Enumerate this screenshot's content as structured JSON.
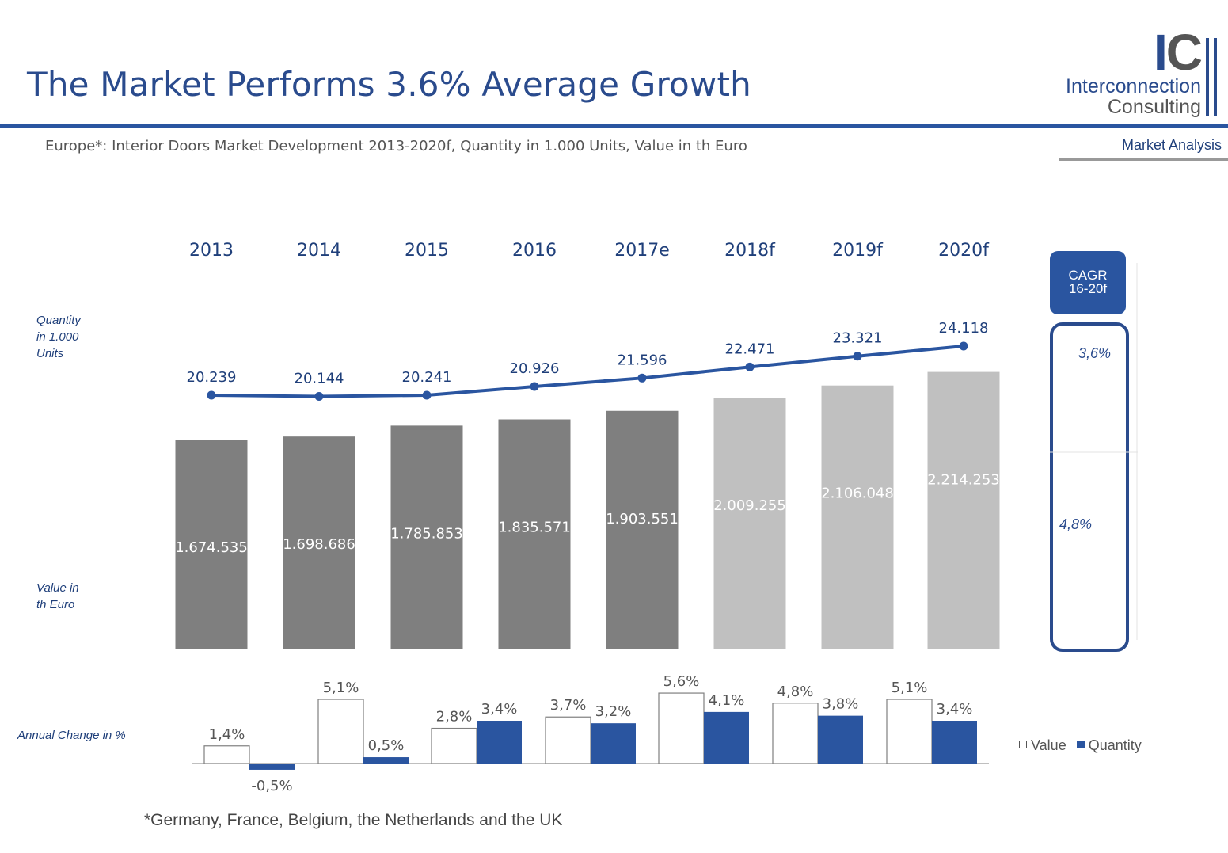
{
  "header": {
    "title": "The Market Performs 3.6% Average Growth",
    "subtitle": "Europe*: Interior Doors Market Development 2013-2020f,  Quantity in 1.000 Units, Value in th Euro",
    "section_label": "Market Analysis"
  },
  "logo": {
    "mark_i": "I",
    "mark_c": "C",
    "line1": "Interconnection",
    "line2": "Consulting"
  },
  "labels": {
    "quantity_axis": [
      "Quantity",
      "in 1.000",
      "Units"
    ],
    "value_axis": [
      "Value in",
      "th  Euro"
    ],
    "annual_change": "Annual Change in %"
  },
  "cagr": {
    "head_line1": "CAGR",
    "head_line2": "16-20f",
    "quantity": "3,6%",
    "value": "4,8%"
  },
  "legend": {
    "value": "Value",
    "quantity": "Quantity"
  },
  "footnote": "*Germany, France, Belgium, the Netherlands and the UK",
  "colors": {
    "brand_blue": "#2a55a0",
    "actual_bar": "#7f7f7f",
    "forecast_bar": "#c0c0c0"
  },
  "chart_data": [
    {
      "type": "bar",
      "categories": [
        "2013",
        "2014",
        "2015",
        "2016",
        "2017e",
        "2018f",
        "2019f",
        "2020f"
      ],
      "series": [
        {
          "values": [
            1674535,
            1698686,
            1785853,
            1835571,
            1903551,
            2009255,
            2106048,
            2214253
          ],
          "labels": [
            "1.674.535",
            "1.698.686",
            "1.785.853",
            "1.835.571",
            "1.903.551",
            "2.009.255",
            "2.106.048",
            "2.214.253"
          ]
        }
      ],
      "forecast_from_index": 5
    },
    {
      "type": "line",
      "categories": [
        "2013",
        "2014",
        "2015",
        "2016",
        "2017e",
        "2018f",
        "2019f",
        "2020f"
      ],
      "series": [
        {
          "values": [
            20239,
            20144,
            20241,
            20926,
            21596,
            22471,
            23321,
            24118
          ],
          "labels": [
            "20.239",
            "20.144",
            "20.241",
            "20.926",
            "21.596",
            "22.471",
            "23.321",
            "24.118"
          ]
        }
      ]
    },
    {
      "type": "bar",
      "categories": [
        "2014",
        "2015",
        "2016",
        "2017e",
        "2018f",
        "2019f",
        "2020f"
      ],
      "series": [
        {
          "name": "Value",
          "values": [
            1.4,
            5.1,
            2.8,
            3.7,
            5.6,
            4.8,
            5.1
          ],
          "labels": [
            "1,4%",
            "5,1%",
            "2,8%",
            "3,7%",
            "5,6%",
            "4,8%",
            "5,1%"
          ]
        },
        {
          "name": "Quantity",
          "values": [
            -0.5,
            0.5,
            3.4,
            3.2,
            4.1,
            3.8,
            3.4
          ],
          "labels": [
            "-0,5%",
            "0,5%",
            "3,4%",
            "3,2%",
            "4,1%",
            "3,8%",
            "3,4%"
          ]
        }
      ]
    }
  ]
}
